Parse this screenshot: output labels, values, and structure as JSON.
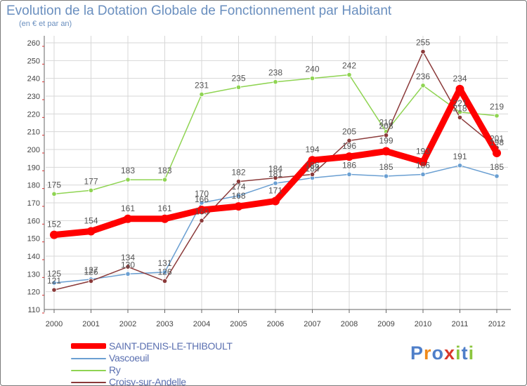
{
  "title": "Evolution de la Dotation Globale de Fonctionnement par Habitant",
  "subtitle": "(en € et par an)",
  "logo": {
    "text": "Proxiti"
  },
  "colors": {
    "grid": "#d7d7d7",
    "axis": "#666666",
    "axis_label": "#444444",
    "point_label": "#555555",
    "axis_marker": "#d43030"
  },
  "chart_data": {
    "type": "line",
    "title": "Evolution de la Dotation Globale de Fonctionnement par Habitant",
    "subtitle": "(en € et par an)",
    "xlabel": "",
    "ylabel": "",
    "ylim": [
      110,
      260
    ],
    "yticks": [
      110,
      120,
      130,
      140,
      150,
      160,
      170,
      180,
      190,
      200,
      210,
      220,
      230,
      240,
      250,
      260
    ],
    "grid": true,
    "legend_position": "bottom-left",
    "categories": [
      "2000",
      "2001",
      "2002",
      "2003",
      "2004",
      "2005",
      "2006",
      "2007",
      "2008",
      "2009",
      "2010",
      "2011",
      "2012"
    ],
    "series": [
      {
        "name": "Ry",
        "color": "#8fd452",
        "values": [
          175,
          177,
          183,
          183,
          231,
          235,
          238,
          240,
          242,
          210,
          236,
          221,
          219
        ]
      },
      {
        "name": "Vascoeuil",
        "color": "#6a9fd2",
        "values": [
          125,
          127,
          130,
          131,
          170,
          174,
          181,
          184,
          186,
          185,
          186,
          191,
          185
        ]
      },
      {
        "name": "Croisy-sur-Andelle",
        "color": "#8b3a3a",
        "values": [
          121,
          126,
          134,
          126,
          160,
          182,
          184,
          186,
          205,
          208,
          255,
          218,
          201
        ]
      },
      {
        "name": "SAINT-DENIS-LE-THIBOULT",
        "color": "#ff0000",
        "values": [
          152,
          154,
          161,
          161,
          166,
          168,
          171,
          194,
          196,
          199,
          193,
          234,
          198
        ]
      }
    ],
    "legend": [
      "SAINT-DENIS-LE-THIBOULT",
      "Vascoeuil",
      "Ry",
      "Croisy-sur-Andelle"
    ]
  }
}
